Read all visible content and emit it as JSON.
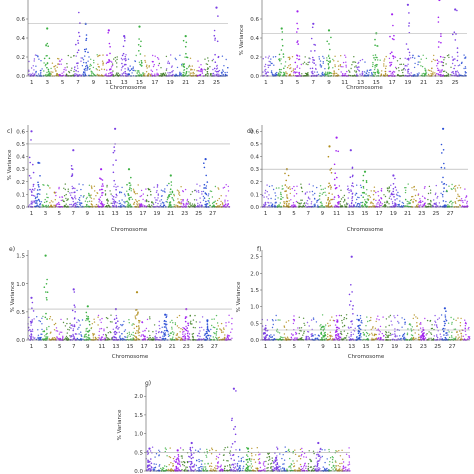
{
  "colors": {
    "palette": [
      "#7b3fe4",
      "#2b4fd6",
      "#3cb043",
      "#b08d1a",
      "#a020f0",
      "#3a7d1f"
    ],
    "threshold": "#aaaaaa",
    "axis": "#555555"
  },
  "chart_data": [
    {
      "type": "scatter",
      "id": "a",
      "panel_label": "",
      "xlabel": "Chromosome",
      "ylabel": "",
      "xtick_labels": [
        "1",
        "3",
        "5",
        "7",
        "9",
        "11",
        "13",
        "15",
        "17",
        "19",
        "21",
        "23",
        "25"
      ],
      "yticks": [
        0.0,
        0.2,
        0.4,
        0.6
      ],
      "ylim": [
        0,
        0.8
      ],
      "threshold": 0.55,
      "grid": false,
      "peaks": [
        {
          "chr": 3,
          "value": 0.5
        },
        {
          "chr": 7,
          "value": 0.82
        },
        {
          "chr": 8,
          "value": 0.55
        },
        {
          "chr": 11,
          "value": 0.48
        },
        {
          "chr": 13,
          "value": 0.42
        },
        {
          "chr": 15,
          "value": 0.52
        },
        {
          "chr": 21,
          "value": 0.42
        },
        {
          "chr": 25,
          "value": 0.72
        }
      ]
    },
    {
      "type": "scatter",
      "id": "b",
      "panel_label": "",
      "xlabel": "Chromosome",
      "ylabel": "% Variance",
      "xtick_labels": [
        "1",
        "3",
        "5",
        "7",
        "9",
        "11",
        "13",
        "15",
        "17",
        "19",
        "21",
        "23",
        "25"
      ],
      "yticks": [
        0.0,
        0.2,
        0.4,
        0.6
      ],
      "ylim": [
        0,
        0.8
      ],
      "threshold": 0.45,
      "grid": false,
      "peaks": [
        {
          "chr": 3,
          "value": 0.5
        },
        {
          "chr": 5,
          "value": 0.68
        },
        {
          "chr": 7,
          "value": 0.55
        },
        {
          "chr": 9,
          "value": 0.48
        },
        {
          "chr": 15,
          "value": 0.45
        },
        {
          "chr": 17,
          "value": 0.65
        },
        {
          "chr": 19,
          "value": 0.75
        },
        {
          "chr": 23,
          "value": 0.8
        },
        {
          "chr": 25,
          "value": 0.7
        }
      ]
    },
    {
      "type": "scatter",
      "id": "c",
      "panel_label": "c)",
      "xlabel": "Chromosome",
      "ylabel": "% Variance",
      "xtick_labels": [
        "1",
        "3",
        "5",
        "7",
        "9",
        "11",
        "13",
        "15",
        "17",
        "19",
        "21",
        "23",
        "25",
        "27"
      ],
      "yticks": [
        0.0,
        0.1,
        0.2,
        0.3,
        0.4,
        0.5,
        0.6
      ],
      "ylim": [
        0,
        0.65
      ],
      "threshold": 0.5,
      "grid": false,
      "peaks": [
        {
          "chr": 1,
          "value": 0.6
        },
        {
          "chr": 2,
          "value": 0.35
        },
        {
          "chr": 7,
          "value": 0.45
        },
        {
          "chr": 11,
          "value": 0.3
        },
        {
          "chr": 13,
          "value": 0.62
        },
        {
          "chr": 15,
          "value": 0.3
        },
        {
          "chr": 21,
          "value": 0.25
        },
        {
          "chr": 26,
          "value": 0.38
        }
      ]
    },
    {
      "type": "scatter",
      "id": "d",
      "panel_label": "d)",
      "xlabel": "Chromosome",
      "ylabel": "",
      "xtick_labels": [
        "1",
        "3",
        "5",
        "7",
        "9",
        "11",
        "13",
        "15",
        "17",
        "19",
        "21",
        "23",
        "25",
        "27"
      ],
      "yticks": [
        0.0,
        0.1,
        0.2,
        0.3,
        0.4,
        0.5,
        0.6
      ],
      "ylim": [
        0,
        0.65
      ],
      "threshold": 0.3,
      "grid": false,
      "peaks": [
        {
          "chr": 4,
          "value": 0.3
        },
        {
          "chr": 10,
          "value": 0.48
        },
        {
          "chr": 11,
          "value": 0.55
        },
        {
          "chr": 13,
          "value": 0.45
        },
        {
          "chr": 15,
          "value": 0.28
        },
        {
          "chr": 19,
          "value": 0.25
        },
        {
          "chr": 26,
          "value": 0.62
        }
      ]
    },
    {
      "type": "scatter",
      "id": "e",
      "panel_label": "e)",
      "xlabel": "Chromosome",
      "ylabel": "% Variance",
      "xtick_labels": [
        "1",
        "3",
        "5",
        "7",
        "9",
        "11",
        "13",
        "15",
        "17",
        "19",
        "21",
        "23",
        "25",
        "27"
      ],
      "yticks": [
        0.0,
        0.5,
        1.0,
        1.5
      ],
      "ylim": [
        0,
        1.6
      ],
      "threshold": 0.55,
      "grid": false,
      "peaks": [
        {
          "chr": 1,
          "value": 0.75
        },
        {
          "chr": 3,
          "value": 1.5
        },
        {
          "chr": 7,
          "value": 0.9
        },
        {
          "chr": 9,
          "value": 0.6
        },
        {
          "chr": 13,
          "value": 0.55
        },
        {
          "chr": 16,
          "value": 0.85
        },
        {
          "chr": 20,
          "value": 0.45
        },
        {
          "chr": 23,
          "value": 0.55
        },
        {
          "chr": 26,
          "value": 0.35
        }
      ]
    },
    {
      "type": "scatter",
      "id": "f",
      "panel_label": "f)",
      "xlabel": "Chromosome",
      "ylabel": "% Variance",
      "xtick_labels": [
        "1",
        "3",
        "5",
        "7",
        "9",
        "11",
        "13",
        "15",
        "17",
        "19",
        "21",
        "23",
        "25",
        "27"
      ],
      "yticks": [
        0.0,
        0.5,
        1.0,
        1.5,
        2.0,
        2.5
      ],
      "ylim": [
        0,
        2.7
      ],
      "threshold": 0.3,
      "grid": false,
      "peaks": [
        {
          "chr": 1,
          "value": 0.35
        },
        {
          "chr": 9,
          "value": 0.4
        },
        {
          "chr": 11,
          "value": 0.55
        },
        {
          "chr": 13,
          "value": 2.5
        },
        {
          "chr": 14,
          "value": 0.6
        },
        {
          "chr": 23,
          "value": 0.3
        },
        {
          "chr": 26,
          "value": 0.95
        }
      ]
    },
    {
      "type": "scatter",
      "id": "g",
      "panel_label": "g)",
      "xlabel": "",
      "ylabel": "% Variance",
      "xtick_labels": [],
      "yticks": [
        0.0,
        0.5,
        1.0,
        1.5,
        2.0
      ],
      "ylim": [
        0,
        2.3
      ],
      "threshold": 0.5,
      "grid": false,
      "peaks": [
        {
          "chr": 1,
          "value": 0.6
        },
        {
          "chr": 5,
          "value": 0.55
        },
        {
          "chr": 7,
          "value": 0.75
        },
        {
          "chr": 13,
          "value": 2.2
        },
        {
          "chr": 15,
          "value": 0.6
        },
        {
          "chr": 19,
          "value": 0.35
        },
        {
          "chr": 25,
          "value": 0.75
        }
      ]
    }
  ]
}
